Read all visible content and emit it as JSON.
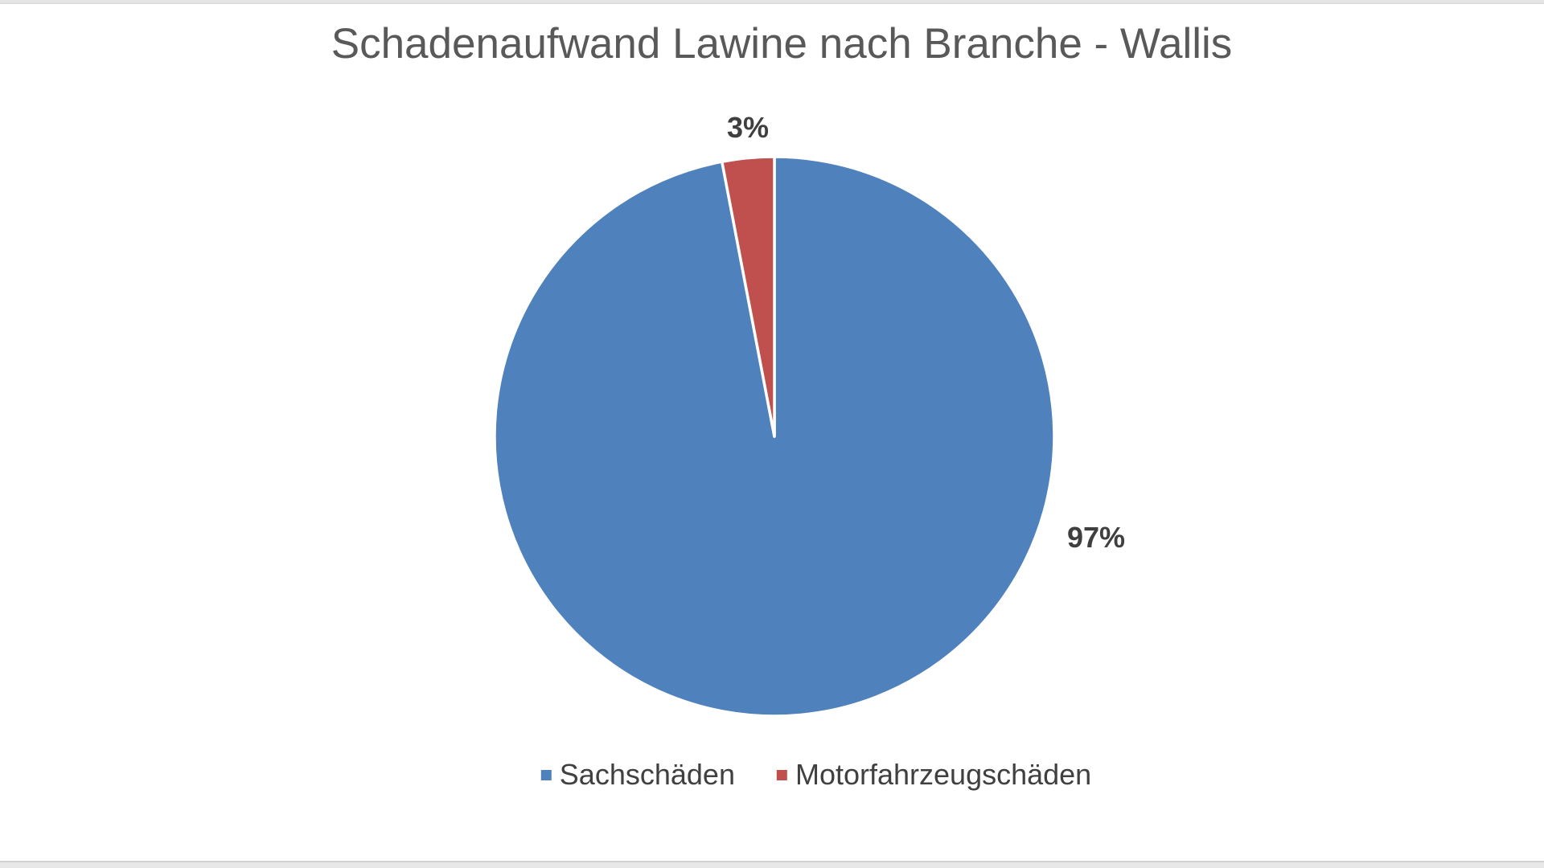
{
  "chart_data": {
    "type": "pie",
    "title": "Schadenaufwand Lawine nach Branche - Wallis",
    "categories": [
      "Sachschäden",
      "Motorfahrzeugschäden"
    ],
    "values": [
      97,
      3
    ],
    "unit": "%",
    "slices": [
      {
        "label": "Sachschäden",
        "value": 97,
        "data_label": "97%",
        "color": "#4F81BD"
      },
      {
        "label": "Motorfahrzeugschäden",
        "value": 3,
        "data_label": "3%",
        "color": "#C0504D"
      }
    ],
    "start_angle_deg": 0,
    "direction": "clockwise",
    "legend_position": "bottom",
    "slice_separator_color": "#FFFFFF",
    "title_color": "#595959",
    "data_label_color": "#3F3F3F",
    "legend_text_color": "#404040",
    "background_color": "#FFFFFF"
  }
}
